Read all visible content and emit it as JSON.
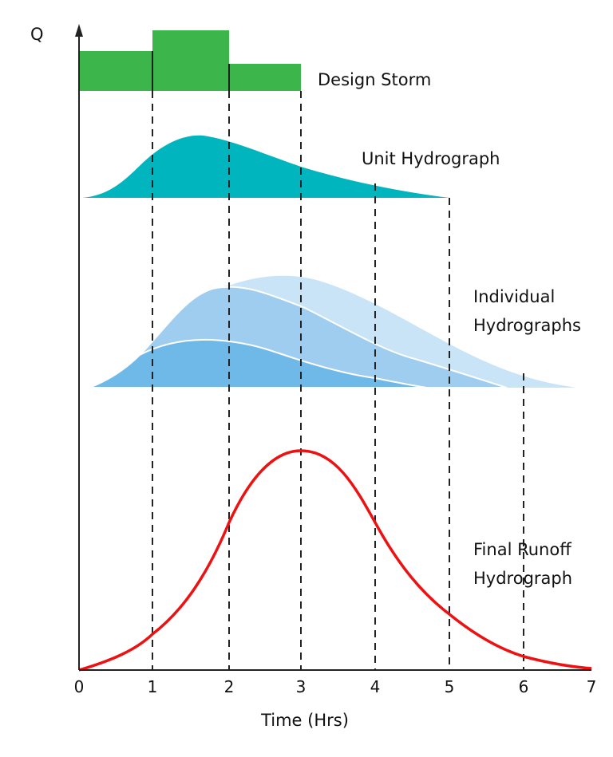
{
  "axes": {
    "y_label": "Q",
    "x_label": "Time (Hrs)",
    "x_ticks": [
      "0",
      "1",
      "2",
      "3",
      "4",
      "5",
      "6",
      "7"
    ]
  },
  "labels": {
    "design_storm": "Design Storm",
    "unit_hydrograph": "Unit Hydrograph",
    "individual_line1": "Individual",
    "individual_line2": "Hydrographs",
    "final_line1": "Final Runoff",
    "final_line2": "Hydrograph"
  },
  "colors": {
    "design_storm": "#3cb54a",
    "unit_hydrograph": "#00b5bd",
    "individual_1": "#6fb9e8",
    "individual_2": "#9ecdef",
    "individual_3": "#c9e3f7",
    "final_runoff": "#ee1111"
  }
}
